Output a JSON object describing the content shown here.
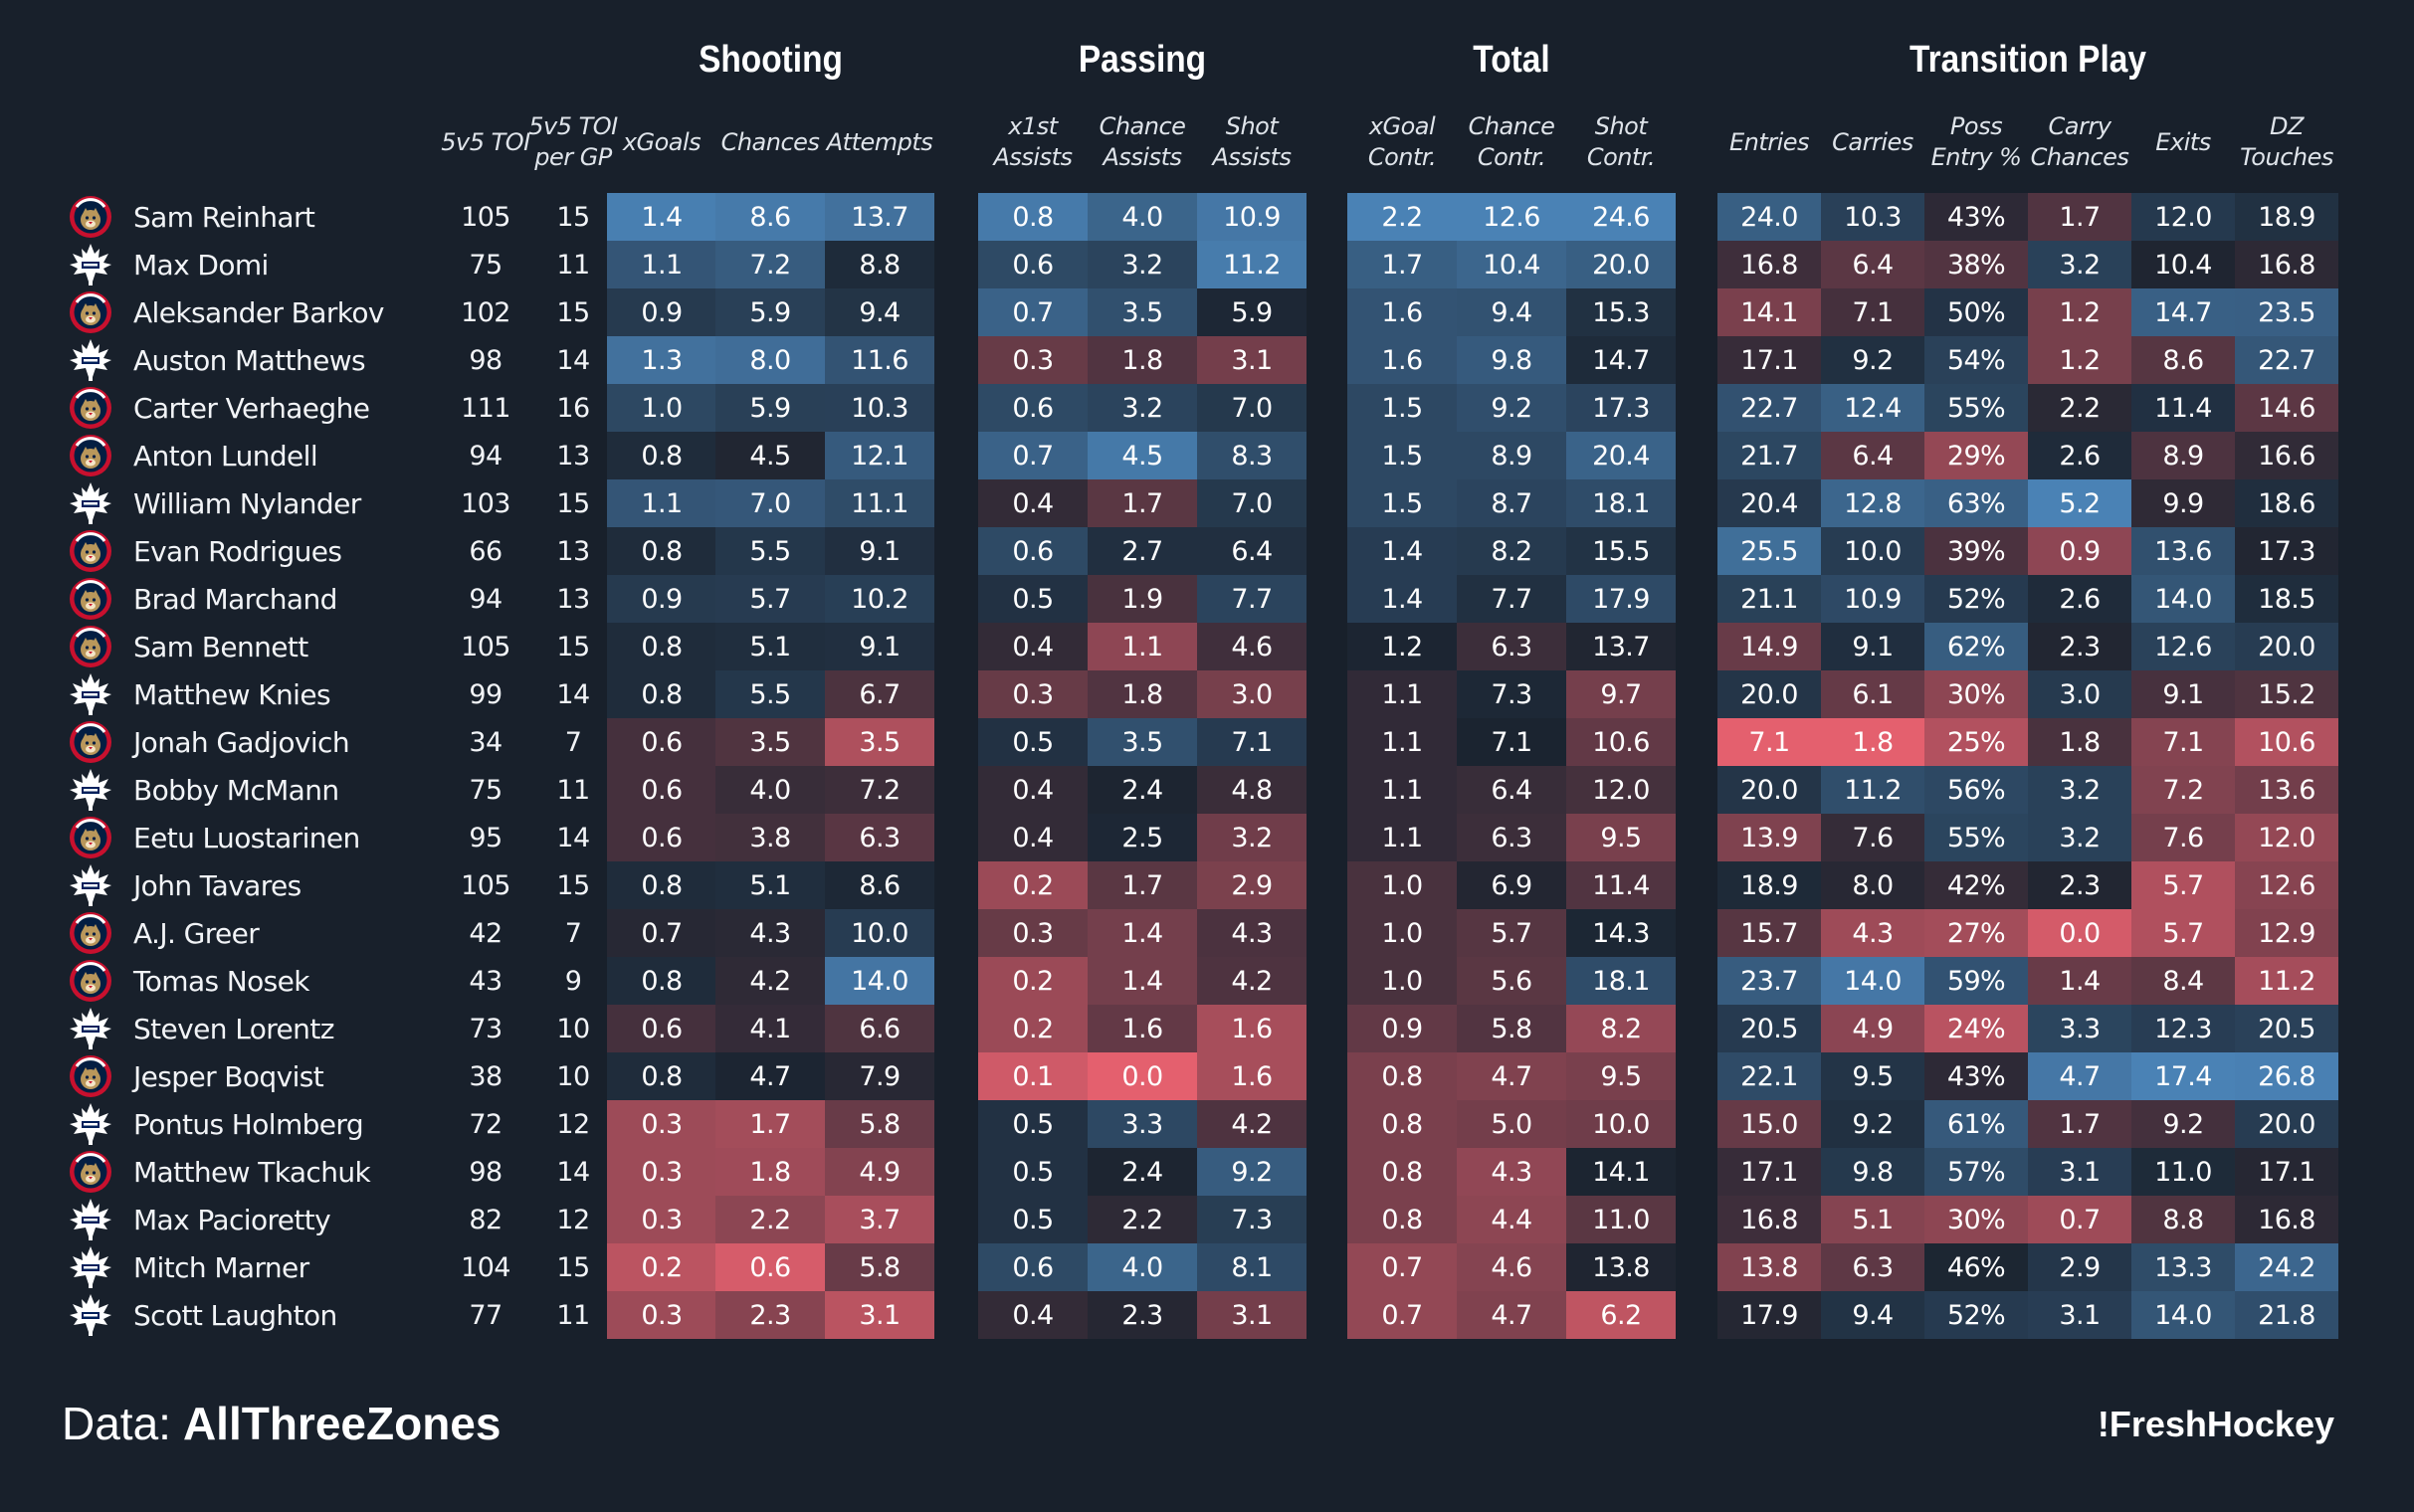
{
  "colors": {
    "background": "#18202b",
    "high": "#4a82b5",
    "low": "#e4606e",
    "neutral": "#1b2430"
  },
  "teams": {
    "FLA": {
      "name": "FLORIDA",
      "primary": "#c8102e",
      "secondary": "#b9975b",
      "navy": "#041e42"
    },
    "TOR": {
      "name": "TORONTO",
      "primary": "#00205b",
      "secondary": "#ffffff"
    }
  },
  "footer": {
    "source_prefix": "Data:",
    "source_name": "AllThreeZones",
    "brand": "!FreshHockey"
  },
  "chart_data": {
    "type": "table",
    "title": "",
    "groups": [
      {
        "key": "shooting",
        "label": "Shooting"
      },
      {
        "key": "passing",
        "label": "Passing"
      },
      {
        "key": "total",
        "label": "Total"
      },
      {
        "key": "transition",
        "label": "Transition Play"
      }
    ],
    "columns": [
      {
        "key": "toi",
        "label": "5v5 TOI",
        "group": null,
        "heat": false
      },
      {
        "key": "toi_gp",
        "label": "5v5 TOI\nper GP",
        "group": null,
        "heat": false
      },
      {
        "key": "xgoals",
        "label": "xGoals",
        "group": "shooting",
        "heat": true
      },
      {
        "key": "chances",
        "label": "Chances",
        "group": "shooting",
        "heat": true
      },
      {
        "key": "attempts",
        "label": "Attempts",
        "group": "shooting",
        "heat": true
      },
      {
        "key": "x1st",
        "label": "x1st\nAssists",
        "group": "passing",
        "heat": true
      },
      {
        "key": "chance_ast",
        "label": "Chance\nAssists",
        "group": "passing",
        "heat": true
      },
      {
        "key": "shot_ast",
        "label": "Shot\nAssists",
        "group": "passing",
        "heat": true
      },
      {
        "key": "xgoal_contr",
        "label": "xGoal\nContr.",
        "group": "total",
        "heat": true
      },
      {
        "key": "chance_contr",
        "label": "Chance\nContr.",
        "group": "total",
        "heat": true
      },
      {
        "key": "shot_contr",
        "label": "Shot\nContr.",
        "group": "total",
        "heat": true
      },
      {
        "key": "entries",
        "label": "Entries",
        "group": "transition",
        "heat": true
      },
      {
        "key": "carries",
        "label": "Carries",
        "group": "transition",
        "heat": true
      },
      {
        "key": "poss_entry",
        "label": "Poss\nEntry %",
        "group": "transition",
        "heat": true,
        "suffix": "%"
      },
      {
        "key": "carry_chances",
        "label": "Carry\nChances",
        "group": "transition",
        "heat": true
      },
      {
        "key": "exits",
        "label": "Exits",
        "group": "transition",
        "heat": true
      },
      {
        "key": "dz_touches",
        "label": "DZ\nTouches",
        "group": "transition",
        "heat": true
      }
    ],
    "rows": [
      {
        "player": "Sam Reinhart",
        "team": "FLA",
        "values": [
          105,
          15,
          1.4,
          8.6,
          13.7,
          0.8,
          4.0,
          10.9,
          2.2,
          12.6,
          24.6,
          24.0,
          10.3,
          43,
          1.7,
          12.0,
          18.9
        ]
      },
      {
        "player": "Max Domi",
        "team": "TOR",
        "values": [
          75,
          11,
          1.1,
          7.2,
          8.8,
          0.6,
          3.2,
          11.2,
          1.7,
          10.4,
          20.0,
          16.8,
          6.4,
          38,
          3.2,
          10.4,
          16.8
        ]
      },
      {
        "player": "Aleksander Barkov",
        "team": "FLA",
        "values": [
          102,
          15,
          0.9,
          5.9,
          9.4,
          0.7,
          3.5,
          5.9,
          1.6,
          9.4,
          15.3,
          14.1,
          7.1,
          50,
          1.2,
          14.7,
          23.5
        ]
      },
      {
        "player": "Auston Matthews",
        "team": "TOR",
        "values": [
          98,
          14,
          1.3,
          8.0,
          11.6,
          0.3,
          1.8,
          3.1,
          1.6,
          9.8,
          14.7,
          17.1,
          9.2,
          54,
          1.2,
          8.6,
          22.7
        ]
      },
      {
        "player": "Carter Verhaeghe",
        "team": "FLA",
        "values": [
          111,
          16,
          1.0,
          5.9,
          10.3,
          0.6,
          3.2,
          7.0,
          1.5,
          9.2,
          17.3,
          22.7,
          12.4,
          55,
          2.2,
          11.4,
          14.6
        ]
      },
      {
        "player": "Anton Lundell",
        "team": "FLA",
        "values": [
          94,
          13,
          0.8,
          4.5,
          12.1,
          0.7,
          4.5,
          8.3,
          1.5,
          8.9,
          20.4,
          21.7,
          6.4,
          29,
          2.6,
          8.9,
          16.6
        ]
      },
      {
        "player": "William Nylander",
        "team": "TOR",
        "values": [
          103,
          15,
          1.1,
          7.0,
          11.1,
          0.4,
          1.7,
          7.0,
          1.5,
          8.7,
          18.1,
          20.4,
          12.8,
          63,
          5.2,
          9.9,
          18.6
        ]
      },
      {
        "player": "Evan Rodrigues",
        "team": "FLA",
        "values": [
          66,
          13,
          0.8,
          5.5,
          9.1,
          0.6,
          2.7,
          6.4,
          1.4,
          8.2,
          15.5,
          25.5,
          10.0,
          39,
          0.9,
          13.6,
          17.3
        ]
      },
      {
        "player": "Brad Marchand",
        "team": "FLA",
        "values": [
          94,
          13,
          0.9,
          5.7,
          10.2,
          0.5,
          1.9,
          7.7,
          1.4,
          7.7,
          17.9,
          21.1,
          10.9,
          52,
          2.6,
          14.0,
          18.5
        ]
      },
      {
        "player": "Sam Bennett",
        "team": "FLA",
        "values": [
          105,
          15,
          0.8,
          5.1,
          9.1,
          0.4,
          1.1,
          4.6,
          1.2,
          6.3,
          13.7,
          14.9,
          9.1,
          62,
          2.3,
          12.6,
          20.0
        ]
      },
      {
        "player": "Matthew Knies",
        "team": "TOR",
        "values": [
          99,
          14,
          0.8,
          5.5,
          6.7,
          0.3,
          1.8,
          3.0,
          1.1,
          7.3,
          9.7,
          20.0,
          6.1,
          30,
          3.0,
          9.1,
          15.2
        ]
      },
      {
        "player": "Jonah Gadjovich",
        "team": "FLA",
        "values": [
          34,
          7,
          0.6,
          3.5,
          3.5,
          0.5,
          3.5,
          7.1,
          1.1,
          7.1,
          10.6,
          7.1,
          1.8,
          25,
          1.8,
          7.1,
          10.6
        ]
      },
      {
        "player": "Bobby McMann",
        "team": "TOR",
        "values": [
          75,
          11,
          0.6,
          4.0,
          7.2,
          0.4,
          2.4,
          4.8,
          1.1,
          6.4,
          12.0,
          20.0,
          11.2,
          56,
          3.2,
          7.2,
          13.6
        ]
      },
      {
        "player": "Eetu Luostarinen",
        "team": "FLA",
        "values": [
          95,
          14,
          0.6,
          3.8,
          6.3,
          0.4,
          2.5,
          3.2,
          1.1,
          6.3,
          9.5,
          13.9,
          7.6,
          55,
          3.2,
          7.6,
          12.0
        ]
      },
      {
        "player": "John Tavares",
        "team": "TOR",
        "values": [
          105,
          15,
          0.8,
          5.1,
          8.6,
          0.2,
          1.7,
          2.9,
          1.0,
          6.9,
          11.4,
          18.9,
          8.0,
          42,
          2.3,
          5.7,
          12.6
        ]
      },
      {
        "player": "A.J. Greer",
        "team": "FLA",
        "values": [
          42,
          7,
          0.7,
          4.3,
          10.0,
          0.3,
          1.4,
          4.3,
          1.0,
          5.7,
          14.3,
          15.7,
          4.3,
          27,
          0.0,
          5.7,
          12.9
        ]
      },
      {
        "player": "Tomas Nosek",
        "team": "FLA",
        "values": [
          43,
          9,
          0.8,
          4.2,
          14.0,
          0.2,
          1.4,
          4.2,
          1.0,
          5.6,
          18.1,
          23.7,
          14.0,
          59,
          1.4,
          8.4,
          11.2
        ]
      },
      {
        "player": "Steven Lorentz",
        "team": "TOR",
        "values": [
          73,
          10,
          0.6,
          4.1,
          6.6,
          0.2,
          1.6,
          1.6,
          0.9,
          5.8,
          8.2,
          20.5,
          4.9,
          24,
          3.3,
          12.3,
          20.5
        ]
      },
      {
        "player": "Jesper Boqvist",
        "team": "FLA",
        "values": [
          38,
          10,
          0.8,
          4.7,
          7.9,
          0.1,
          0.0,
          1.6,
          0.8,
          4.7,
          9.5,
          22.1,
          9.5,
          43,
          4.7,
          17.4,
          26.8
        ]
      },
      {
        "player": "Pontus Holmberg",
        "team": "TOR",
        "values": [
          72,
          12,
          0.3,
          1.7,
          5.8,
          0.5,
          3.3,
          4.2,
          0.8,
          5.0,
          10.0,
          15.0,
          9.2,
          61,
          1.7,
          9.2,
          20.0
        ]
      },
      {
        "player": "Matthew Tkachuk",
        "team": "FLA",
        "values": [
          98,
          14,
          0.3,
          1.8,
          4.9,
          0.5,
          2.4,
          9.2,
          0.8,
          4.3,
          14.1,
          17.1,
          9.8,
          57,
          3.1,
          11.0,
          17.1
        ]
      },
      {
        "player": "Max Pacioretty",
        "team": "TOR",
        "values": [
          82,
          12,
          0.3,
          2.2,
          3.7,
          0.5,
          2.2,
          7.3,
          0.8,
          4.4,
          11.0,
          16.8,
          5.1,
          30,
          0.7,
          8.8,
          16.8
        ]
      },
      {
        "player": "Mitch Marner",
        "team": "TOR",
        "values": [
          104,
          15,
          0.2,
          0.6,
          5.8,
          0.6,
          4.0,
          8.1,
          0.7,
          4.6,
          13.8,
          13.8,
          6.3,
          46,
          2.9,
          13.3,
          24.2
        ]
      },
      {
        "player": "Scott Laughton",
        "team": "TOR",
        "values": [
          77,
          11,
          0.3,
          2.3,
          3.1,
          0.4,
          2.3,
          3.1,
          0.7,
          4.7,
          6.2,
          17.9,
          9.4,
          52,
          3.1,
          14.0,
          21.8
        ]
      }
    ]
  }
}
